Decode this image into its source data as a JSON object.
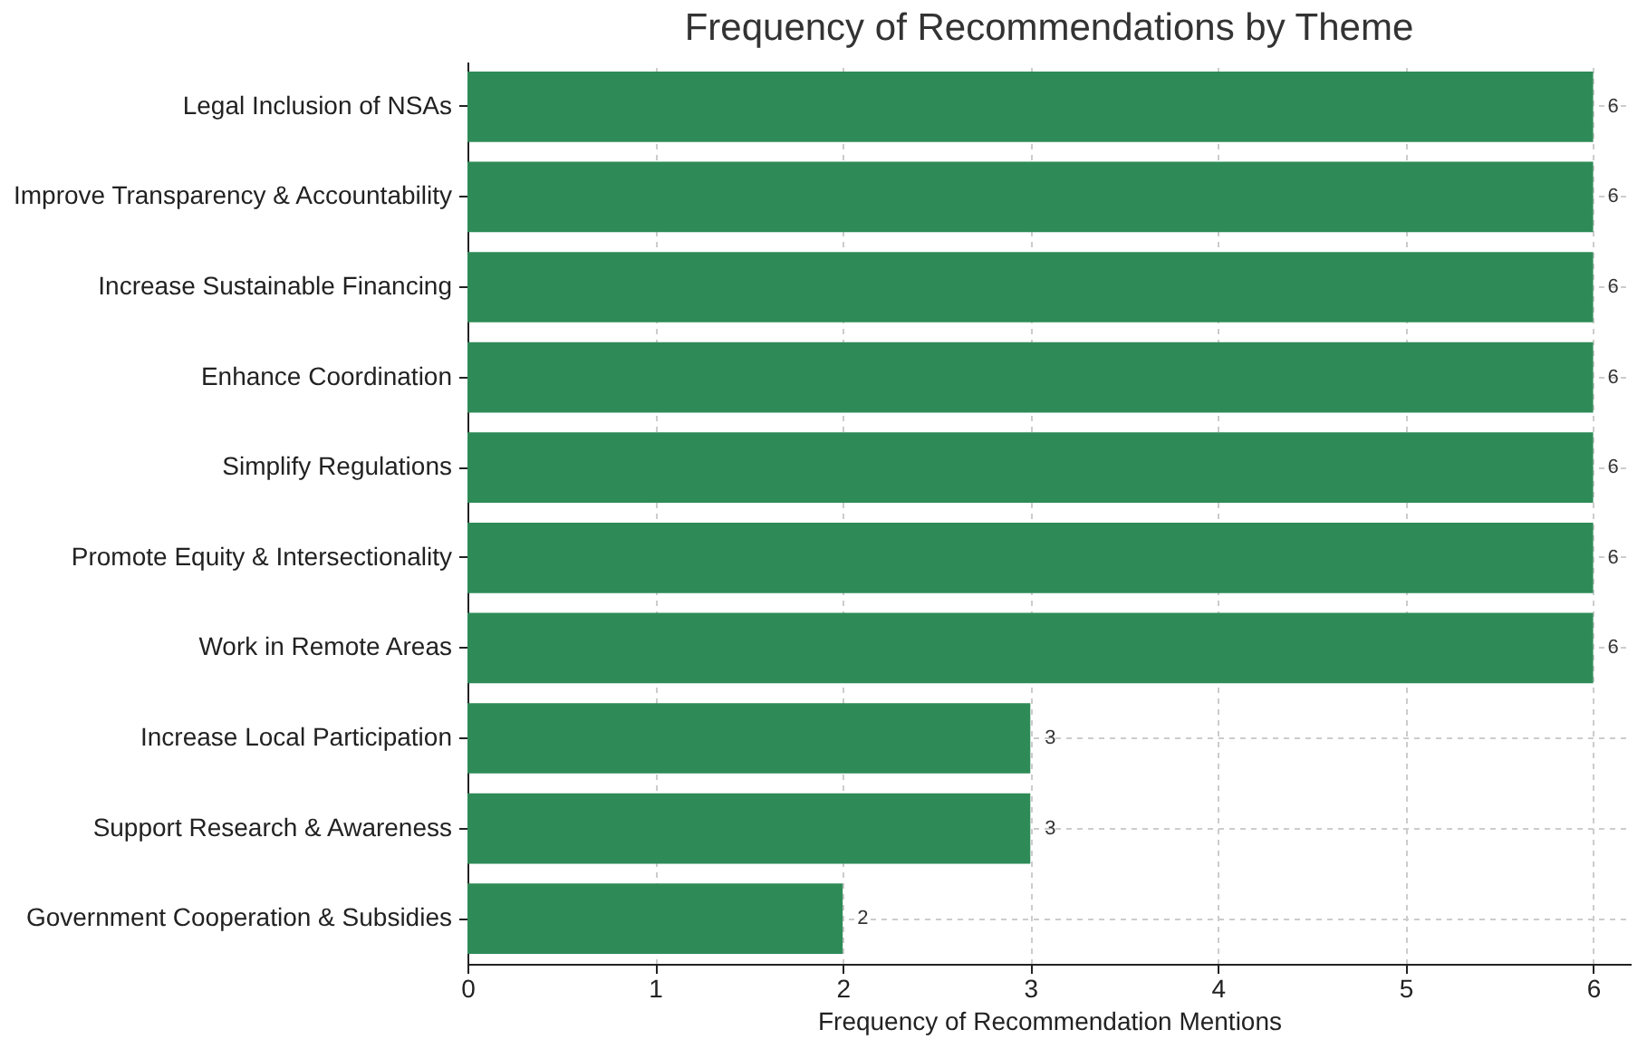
{
  "chart_data": {
    "type": "bar",
    "orientation": "horizontal",
    "title": "Frequency of Recommendations by Theme",
    "xlabel": "Frequency of Recommendation Mentions",
    "categories": [
      "Legal Inclusion of NSAs",
      "Improve Transparency & Accountability",
      "Increase Sustainable Financing",
      "Enhance Coordination",
      "Simplify Regulations",
      "Promote Equity & Intersectionality",
      "Work in Remote Areas",
      "Increase Local Participation",
      "Support Research & Awareness",
      "Government Cooperation & Subsidies"
    ],
    "values": [
      6,
      6,
      6,
      6,
      6,
      6,
      6,
      3,
      3,
      2
    ],
    "color": "#2e8b57",
    "xlim": [
      0,
      6.2
    ],
    "xticks": [
      0,
      1,
      2,
      3,
      4,
      5,
      6
    ],
    "grid": true,
    "data_labels": true
  }
}
